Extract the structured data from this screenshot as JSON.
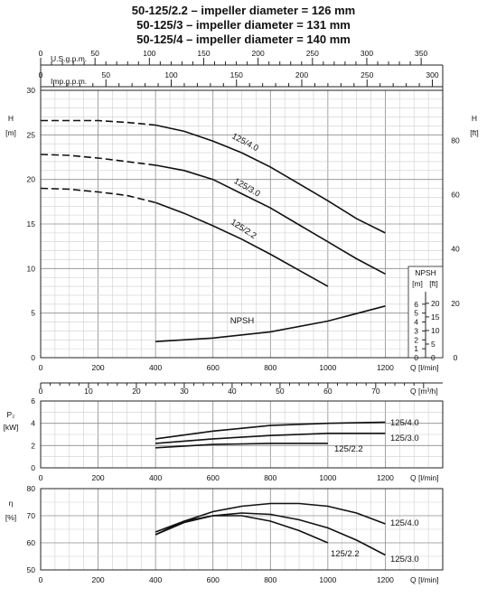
{
  "titles": [
    "50-125/2.2 – impeller diameter = 126 mm",
    "50-125/3 – impeller diameter = 131 mm",
    "50-125/4 – impeller diameter = 140 mm"
  ],
  "top_axes": {
    "usgpm_label": "U.S.g.p.m.",
    "usgpm_ticks": [
      "0",
      "50",
      "100",
      "150",
      "200",
      "250",
      "300",
      "350"
    ],
    "impgpm_label": "Imp.g.p.m.",
    "impgpm_ticks": [
      "0",
      "50",
      "100",
      "150",
      "200",
      "250",
      "300"
    ]
  },
  "chart_data": [
    {
      "type": "line",
      "name": "head",
      "ylabel_left": "H",
      "yunit_left": "[m]",
      "ylabel_right": "H",
      "yunit_right": "[ft]",
      "xlabel": "Q [l/min]",
      "xlabel2": "Q [m³/h]",
      "xlim": [
        0,
        1400
      ],
      "ylim": [
        0,
        30
      ],
      "x_ticks": [
        "0",
        "200",
        "400",
        "600",
        "800",
        "1000",
        "1200"
      ],
      "x2_ticks": [
        "0",
        "10",
        "20",
        "30",
        "40",
        "50",
        "60",
        "70"
      ],
      "y_ticks": [
        "0",
        "5",
        "10",
        "15",
        "20",
        "25",
        "30"
      ],
      "y_right_ticks": [
        "0",
        "20",
        "40",
        "60",
        "80"
      ],
      "series": [
        {
          "name": "125/4.0",
          "dash_x": [
            0,
            400
          ],
          "solid_x": [
            400,
            1200
          ],
          "x": [
            0,
            100,
            200,
            300,
            400,
            500,
            600,
            700,
            800,
            900,
            1000,
            1100,
            1200
          ],
          "y": [
            26.6,
            26.6,
            26.6,
            26.4,
            26.1,
            25.4,
            24.3,
            23.0,
            21.4,
            19.5,
            17.6,
            15.6,
            14.0
          ]
        },
        {
          "name": "125/3.0",
          "dash_x": [
            0,
            400
          ],
          "solid_x": [
            400,
            1200
          ],
          "x": [
            0,
            100,
            200,
            300,
            400,
            500,
            600,
            700,
            800,
            900,
            1000,
            1100,
            1200
          ],
          "y": [
            22.8,
            22.7,
            22.4,
            22.0,
            21.6,
            21.0,
            20.0,
            18.4,
            16.8,
            14.9,
            13.0,
            11.1,
            9.4
          ]
        },
        {
          "name": "125/2.2",
          "dash_x": [
            0,
            400
          ],
          "solid_x": [
            400,
            1000
          ],
          "x": [
            0,
            100,
            200,
            300,
            400,
            500,
            600,
            700,
            800,
            900,
            1000
          ],
          "y": [
            19.0,
            18.9,
            18.6,
            18.2,
            17.4,
            16.2,
            14.8,
            13.3,
            11.6,
            9.8,
            8.0
          ]
        },
        {
          "name": "NPSH",
          "solid_x": [
            400,
            1200
          ],
          "x": [
            400,
            600,
            800,
            1000,
            1200
          ],
          "y": [
            1.8,
            2.2,
            2.9,
            4.1,
            5.8
          ]
        }
      ],
      "npsh_box": {
        "title": "NPSH",
        "unit_m": "[m]",
        "unit_ft": "[ft]",
        "m_ticks": [
          "0",
          "1",
          "2",
          "3",
          "4",
          "5",
          "6"
        ],
        "ft_ticks": [
          "0",
          "5",
          "10",
          "15",
          "20"
        ]
      }
    },
    {
      "type": "line",
      "name": "power",
      "ylabel": "P₂",
      "yunit": "[kW]",
      "xlabel": "Q [l/min]",
      "xlim": [
        0,
        1400
      ],
      "ylim": [
        0,
        6
      ],
      "y_ticks": [
        "0",
        "2",
        "4",
        "6"
      ],
      "series": [
        {
          "name": "125/4.0",
          "x": [
            400,
            600,
            800,
            1000,
            1200
          ],
          "y": [
            2.6,
            3.3,
            3.8,
            4.0,
            4.1
          ]
        },
        {
          "name": "125/3.0",
          "x": [
            400,
            600,
            800,
            1000,
            1200
          ],
          "y": [
            2.2,
            2.6,
            2.9,
            3.1,
            3.1
          ]
        },
        {
          "name": "125/2.2",
          "x": [
            400,
            600,
            800,
            1000
          ],
          "y": [
            1.8,
            2.1,
            2.2,
            2.2
          ]
        }
      ]
    },
    {
      "type": "line",
      "name": "efficiency",
      "ylabel": "η",
      "yunit": "[%]",
      "xlabel": "Q [l/min]",
      "xlim": [
        0,
        1400
      ],
      "ylim": [
        50,
        80
      ],
      "y_ticks": [
        "50",
        "60",
        "70",
        "80"
      ],
      "x_ticks": [
        "0",
        "200",
        "400",
        "600",
        "800",
        "1000",
        "1200"
      ],
      "series": [
        {
          "name": "125/4.0",
          "x": [
            400,
            500,
            600,
            700,
            800,
            900,
            1000,
            1100,
            1200
          ],
          "y": [
            63,
            68,
            71.5,
            73.5,
            74.5,
            74.5,
            73.5,
            71,
            67
          ]
        },
        {
          "name": "125/3.0",
          "x": [
            400,
            500,
            600,
            700,
            800,
            900,
            1000,
            1100,
            1200
          ],
          "y": [
            63,
            67.5,
            70,
            71,
            70.5,
            68.5,
            65.5,
            61,
            55.5
          ]
        },
        {
          "name": "125/2.2",
          "x": [
            400,
            500,
            600,
            700,
            800,
            900,
            1000
          ],
          "y": [
            64,
            68,
            70,
            70,
            68,
            64.5,
            60
          ]
        }
      ]
    }
  ]
}
